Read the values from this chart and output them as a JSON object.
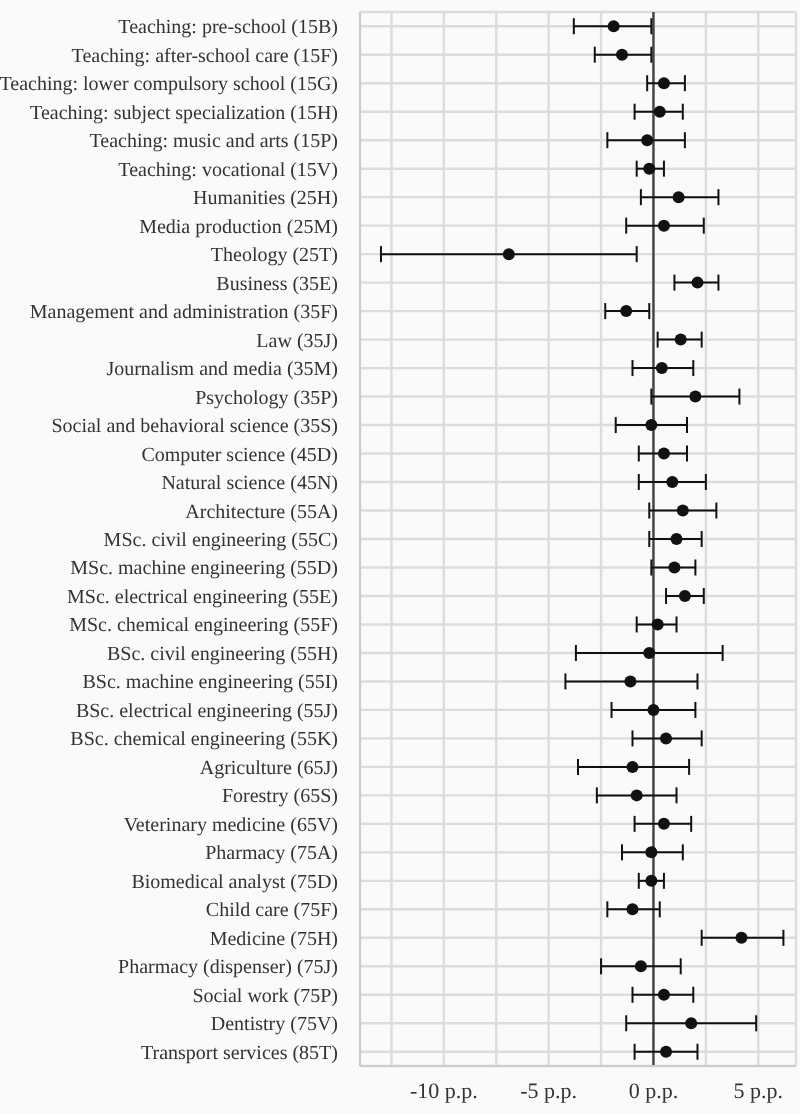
{
  "chart_data": {
    "type": "scatter",
    "orientation": "horizontal",
    "marker": "circle",
    "grid": true,
    "color": "#111111",
    "categories": [
      "Teaching: pre-school (15B)",
      "Teaching: after-school care (15F)",
      "Teaching: lower compulsory school (15G)",
      "Teaching: subject specialization (15H)",
      "Teaching: music and arts (15P)",
      "Teaching: vocational (15V)",
      "Humanities (25H)",
      "Media production (25M)",
      "Theology (25T)",
      "Business (35E)",
      "Management and administration (35F)",
      "Law (35J)",
      "Journalism and media (35M)",
      "Psychology (35P)",
      "Social and behavioral science (35S)",
      "Computer science (45D)",
      "Natural science (45N)",
      "Architecture (55A)",
      "MSc. civil engineering (55C)",
      "MSc. machine engineering (55D)",
      "MSc. electrical engineering (55E)",
      "MSc. chemical engineering (55F)",
      "BSc. civil engineering (55H)",
      "BSc. machine engineering (55I)",
      "BSc. electrical engineering (55J)",
      "BSc. chemical engineering (55K)",
      "Agriculture (65J)",
      "Forestry (65S)",
      "Veterinary medicine (65V)",
      "Pharmacy (75A)",
      "Biomedical analyst (75D)",
      "Child care (75F)",
      "Medicine (75H)",
      "Pharmacy (dispenser) (75J)",
      "Social work (75P)",
      "Dentistry (75V)",
      "Transport services (85T)"
    ],
    "values": [
      -1.9,
      -1.5,
      0.5,
      0.3,
      -0.3,
      -0.2,
      1.2,
      0.5,
      -6.9,
      2.1,
      -1.3,
      1.3,
      0.4,
      2.0,
      -0.1,
      0.5,
      0.9,
      1.4,
      1.1,
      1.0,
      1.5,
      0.2,
      -0.2,
      -1.1,
      0.0,
      0.6,
      -1.0,
      -0.8,
      0.5,
      -0.1,
      -0.1,
      -1.0,
      4.2,
      -0.6,
      0.5,
      1.8,
      0.6
    ],
    "errors": [
      [
        -3.8,
        -0.1
      ],
      [
        -2.8,
        -0.1
      ],
      [
        -0.3,
        1.5
      ],
      [
        -0.9,
        1.4
      ],
      [
        -2.2,
        1.5
      ],
      [
        -0.8,
        0.5
      ],
      [
        -0.6,
        3.1
      ],
      [
        -1.3,
        2.4
      ],
      [
        -13.0,
        -0.8
      ],
      [
        1.0,
        3.1
      ],
      [
        -2.3,
        -0.2
      ],
      [
        0.2,
        2.3
      ],
      [
        -1.0,
        1.9
      ],
      [
        -0.1,
        4.1
      ],
      [
        -1.8,
        1.6
      ],
      [
        -0.7,
        1.6
      ],
      [
        -0.7,
        2.5
      ],
      [
        -0.2,
        3.0
      ],
      [
        -0.2,
        2.3
      ],
      [
        -0.1,
        2.0
      ],
      [
        0.6,
        2.4
      ],
      [
        -0.8,
        1.1
      ],
      [
        -3.7,
        3.3
      ],
      [
        -4.2,
        2.1
      ],
      [
        -2.0,
        2.0
      ],
      [
        -1.0,
        2.3
      ],
      [
        -3.6,
        1.7
      ],
      [
        -2.7,
        1.1
      ],
      [
        -0.9,
        1.8
      ],
      [
        -1.5,
        1.4
      ],
      [
        -0.7,
        0.5
      ],
      [
        -2.2,
        0.3
      ],
      [
        2.3,
        6.2
      ],
      [
        -2.5,
        1.3
      ],
      [
        -1.0,
        1.9
      ],
      [
        -1.3,
        4.9
      ],
      [
        -0.9,
        2.1
      ]
    ],
    "xlim": [
      -14,
      6.8
    ],
    "xticks": [
      {
        "value": -12.5,
        "label": null
      },
      {
        "value": -10,
        "label": "-10 p.p."
      },
      {
        "value": -7.5,
        "label": null
      },
      {
        "value": -5,
        "label": "-5 p.p."
      },
      {
        "value": -2.5,
        "label": null
      },
      {
        "value": 0,
        "label": "0 p.p."
      },
      {
        "value": 2.5,
        "label": null
      },
      {
        "value": 5,
        "label": "5 p.p."
      }
    ],
    "ref_lines": [
      {
        "axis": "x",
        "value": 0,
        "color": "#444444"
      }
    ]
  }
}
